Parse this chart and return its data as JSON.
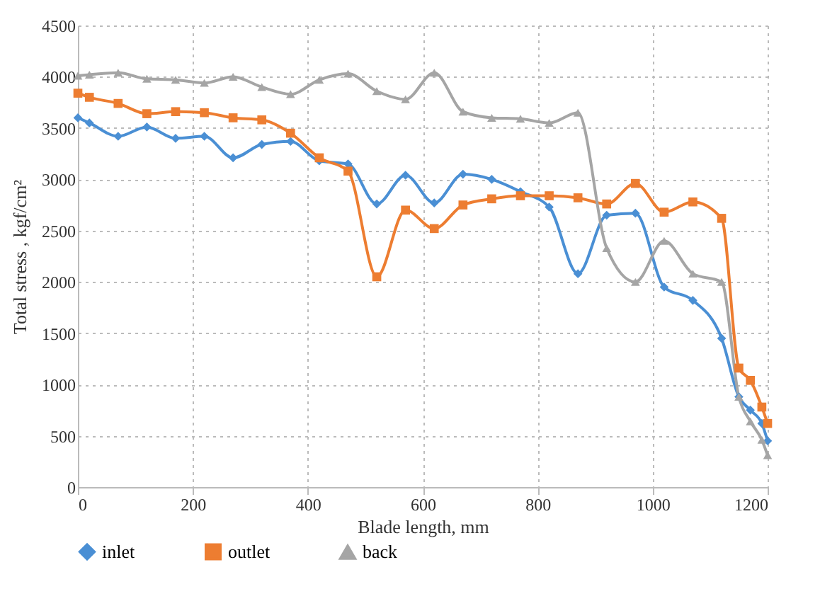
{
  "chart_data": {
    "type": "line",
    "xlabel": "Blade length, mm",
    "ylabel": "Total stress , kgf/cm²",
    "x": [
      0,
      20,
      70,
      120,
      170,
      220,
      270,
      320,
      370,
      420,
      470,
      520,
      570,
      620,
      670,
      720,
      770,
      820,
      870,
      920,
      970,
      1020,
      1070,
      1120,
      1150,
      1170,
      1190,
      1200
    ],
    "series": [
      {
        "name": "inlet",
        "color": "#4a8fd4",
        "marker": "diamond",
        "values": [
          3600,
          3550,
          3420,
          3510,
          3400,
          3420,
          3210,
          3340,
          3370,
          3180,
          3150,
          2760,
          3040,
          2770,
          3050,
          3000,
          2880,
          2730,
          2080,
          2650,
          2670,
          1950,
          1820,
          1450,
          880,
          750,
          620,
          450
        ]
      },
      {
        "name": "outlet",
        "color": "#ed7d31",
        "marker": "square",
        "values": [
          3840,
          3800,
          3740,
          3640,
          3660,
          3650,
          3600,
          3580,
          3450,
          3210,
          3080,
          2050,
          2700,
          2520,
          2750,
          2810,
          2840,
          2840,
          2820,
          2760,
          2960,
          2680,
          2780,
          2620,
          1160,
          1040,
          780,
          620
        ]
      },
      {
        "name": "back",
        "color": "#a5a5a5",
        "marker": "triangle",
        "values": [
          4010,
          4020,
          4040,
          3980,
          3970,
          3940,
          4000,
          3900,
          3830,
          3970,
          4030,
          3860,
          3780,
          4040,
          3660,
          3600,
          3590,
          3550,
          3650,
          2330,
          2000,
          2400,
          2080,
          2000,
          880,
          640,
          460,
          310
        ]
      }
    ],
    "xlim": [
      0,
      1200
    ],
    "xticks": [
      0,
      200,
      400,
      600,
      800,
      1000,
      1200
    ],
    "ylim": [
      0,
      4500
    ],
    "yticks": [
      0,
      500,
      1000,
      1500,
      2000,
      2500,
      3000,
      3500,
      4000,
      4500
    ],
    "grid": true,
    "legend": "bottom"
  }
}
